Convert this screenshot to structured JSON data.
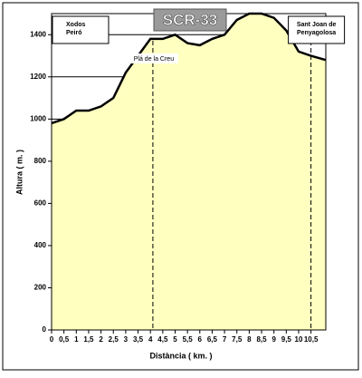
{
  "chart_data": {
    "type": "area",
    "title": "SCR-33",
    "xlabel": "Distància ( km. )",
    "ylabel": "Altura ( m. )",
    "x": [
      0,
      0.5,
      1,
      1.5,
      2,
      2.5,
      3,
      3.5,
      4,
      4.5,
      5,
      5.5,
      6,
      6.5,
      7,
      7.5,
      8,
      8.5,
      9,
      9.5,
      10,
      10.5,
      11.1
    ],
    "series": [
      {
        "color": "#ffffc0",
        "values": [
          980,
          1000,
          1040,
          1040,
          1060,
          1100,
          1220,
          1300,
          1380,
          1380,
          1400,
          1360,
          1350,
          1380,
          1400,
          1470,
          1500,
          1500,
          1480,
          1420,
          1320,
          1300,
          1280
        ]
      }
    ],
    "xlim": [
      0,
      11.1
    ],
    "ylim": [
      0,
      1500
    ],
    "xticks": [
      0,
      {
        "value": 0.5,
        "label": "0,5"
      },
      1,
      {
        "value": 1.5,
        "label": "1,5"
      },
      2,
      {
        "value": 2.5,
        "label": "2,5"
      },
      3,
      {
        "value": 3.5,
        "label": "3,5"
      },
      4,
      {
        "value": 4.5,
        "label": "4,5"
      },
      5,
      {
        "value": 5.5,
        "label": "5,5"
      },
      6,
      {
        "value": 6.5,
        "label": "6,5"
      },
      7,
      {
        "value": 7.5,
        "label": "7,5"
      },
      8,
      {
        "value": 8.5,
        "label": "8,5"
      },
      9,
      {
        "value": 9.5,
        "label": "9,5"
      },
      10,
      {
        "value": 10.5,
        "label": "10,5"
      }
    ],
    "yticks": [
      0,
      200,
      400,
      600,
      800,
      1000,
      1200,
      1400
    ],
    "grid": true,
    "annotations": [
      {
        "x": 0,
        "lines": [
          "Xodos",
          "Peiró"
        ],
        "boxed": true
      },
      {
        "x": 4.1,
        "lines": [
          "Plá de la Creu"
        ],
        "boxed": false
      },
      {
        "x": 10.5,
        "lines": [
          "Sant Joan de",
          "Penyagolosa"
        ],
        "boxed": true
      }
    ]
  }
}
